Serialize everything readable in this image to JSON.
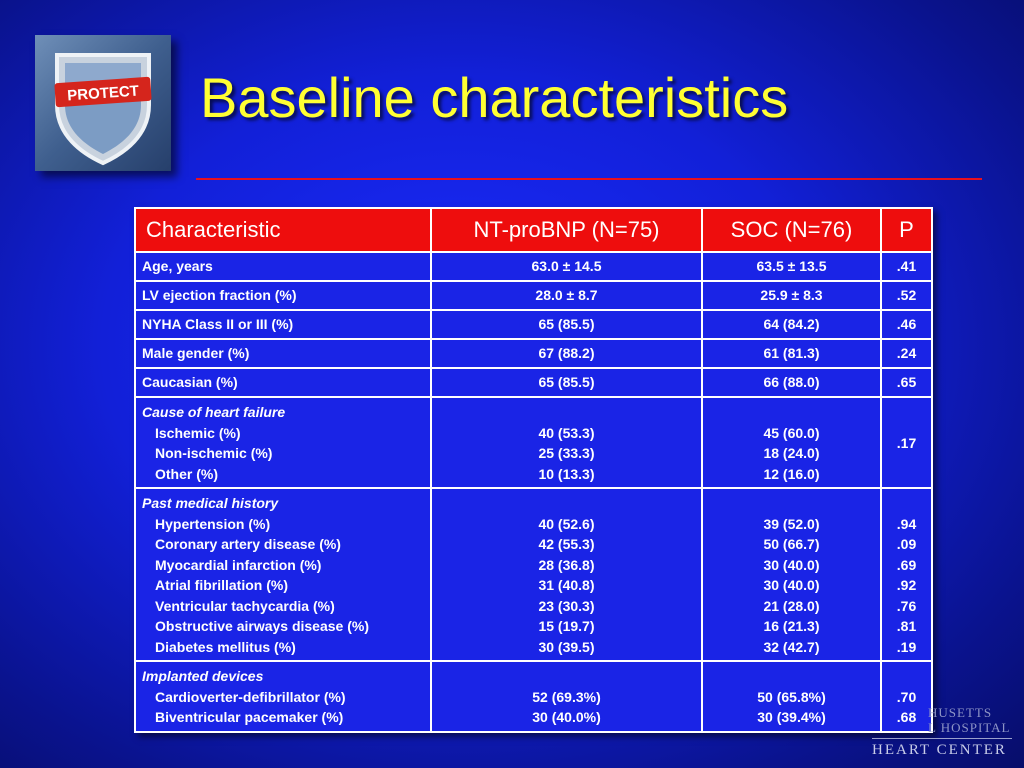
{
  "logo_text": "PROTECT",
  "title": "Baseline characteristics",
  "colors": {
    "background": "#1220d8",
    "title": "#ffff33",
    "rule": "#e8101e",
    "header_bg": "#ee0d0d",
    "cell_bg": "#1a24e6"
  },
  "table": {
    "headers": [
      "Characteristic",
      "NT-proBNP (N=75)",
      "SOC (N=76)",
      "P"
    ],
    "rows": [
      {
        "label": "Age, years",
        "nt": "63.0 ± 14.5",
        "soc": "63.5 ± 13.5",
        "p": ".41"
      },
      {
        "label": "LV ejection fraction (%)",
        "nt": "28.0 ± 8.7",
        "soc": "25.9  ± 8.3",
        "p": ".52"
      },
      {
        "label": "NYHA Class II or III (%)",
        "nt": "65 (85.5)",
        "soc": "64 (84.2)",
        "p": ".46"
      },
      {
        "label": "Male gender (%)",
        "nt": "67 (88.2)",
        "soc": "61 (81.3)",
        "p": ".24"
      },
      {
        "label": "Caucasian (%)",
        "nt": "65 (85.5)",
        "soc": "66 (88.0)",
        "p": ".65"
      }
    ],
    "groups": [
      {
        "heading": "Cause of heart failure",
        "items": [
          "Ischemic (%)",
          "Non-ischemic (%)",
          "Other (%)"
        ],
        "nt": [
          "40 (53.3)",
          "25 (33.3)",
          "10 (13.3)"
        ],
        "soc": [
          "45 (60.0)",
          "18 (24.0)",
          "12 (16.0)"
        ],
        "p": ".17"
      },
      {
        "heading": "Past medical history",
        "items": [
          "Hypertension (%)",
          "Coronary artery disease (%)",
          "Myocardial infarction (%)",
          "Atrial fibrillation (%)",
          "Ventricular tachycardia (%)",
          "Obstructive airways disease (%)",
          "Diabetes mellitus (%)"
        ],
        "nt": [
          "40 (52.6)",
          "42 (55.3)",
          "28 (36.8)",
          "31 (40.8)",
          "23 (30.3)",
          "15 (19.7)",
          "30 (39.5)"
        ],
        "soc": [
          "39 (52.0)",
          "50 (66.7)",
          "30 (40.0)",
          "30 (40.0)",
          "21 (28.0)",
          "16 (21.3)",
          "32 (42.7)"
        ],
        "p": [
          ".94",
          ".09",
          ".69",
          ".92",
          ".76",
          ".81",
          ".19"
        ]
      },
      {
        "heading": "Implanted devices",
        "items": [
          "Cardioverter-defibrillator (%)",
          "Biventricular pacemaker (%)"
        ],
        "nt": [
          "52 (69.3%)",
          "30 (40.0%)"
        ],
        "soc": [
          "50 (65.8%)",
          "30 (39.4%)"
        ],
        "p": [
          ".70",
          ".68"
        ]
      }
    ]
  },
  "watermark": {
    "line1": "HUSETTS",
    "line2": "L HOSPITAL",
    "line3": "HEART CENTER"
  }
}
